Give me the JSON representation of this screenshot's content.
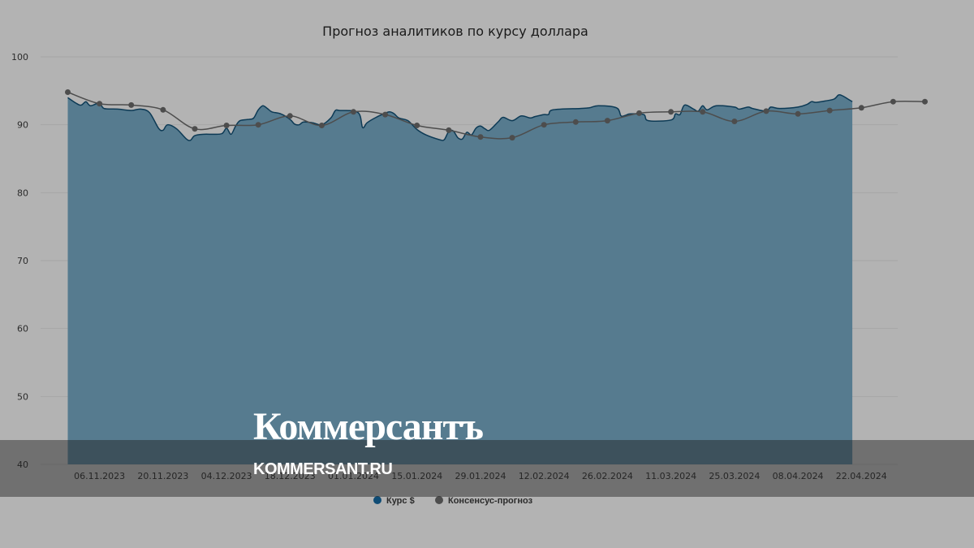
{
  "chart_data": {
    "type": "area",
    "title": "Прогноз аналитиков по курсу доллара",
    "ylim": [
      40,
      100
    ],
    "yticks": [
      100,
      90,
      80,
      70,
      60,
      50,
      40
    ],
    "xlim": [
      "2023-10-24",
      "2024-04-30"
    ],
    "xticks": [
      "06.11.2023",
      "20.11.2023",
      "04.12.2023",
      "18.12.2023",
      "01.01.2024",
      "15.01.2024",
      "29.01.2024",
      "12.02.2024",
      "26.02.2024",
      "11.03.2024",
      "25.03.2024",
      "08.04.2024",
      "22.04.2024"
    ],
    "grid": true,
    "legend_position": "bottom",
    "colors": {
      "area": "#567b8f",
      "area_line": "#0d3a55",
      "consensus": "#4d4d4d",
      "legend_rate": "#0f4c75"
    },
    "series": [
      {
        "name": "Курс $",
        "kind": "area",
        "points": [
          [
            "2023-10-30",
            94.0
          ],
          [
            "2023-11-01",
            93.1
          ],
          [
            "2023-11-02",
            92.9
          ],
          [
            "2023-11-03",
            93.4
          ],
          [
            "2023-11-04",
            92.8
          ],
          [
            "2023-11-06",
            93.2
          ],
          [
            "2023-11-07",
            92.4
          ],
          [
            "2023-11-10",
            92.3
          ],
          [
            "2023-11-13",
            92.1
          ],
          [
            "2023-11-15",
            92.3
          ],
          [
            "2023-11-17",
            91.8
          ],
          [
            "2023-11-19",
            89.5
          ],
          [
            "2023-11-20",
            89.2
          ],
          [
            "2023-11-21",
            90.0
          ],
          [
            "2023-11-23",
            89.4
          ],
          [
            "2023-11-25",
            88.0
          ],
          [
            "2023-11-26",
            87.7
          ],
          [
            "2023-11-27",
            88.4
          ],
          [
            "2023-11-29",
            88.6
          ],
          [
            "2023-12-01",
            88.6
          ],
          [
            "2023-12-03",
            88.7
          ],
          [
            "2023-12-04",
            89.5
          ],
          [
            "2023-12-05",
            88.6
          ],
          [
            "2023-12-06",
            89.8
          ],
          [
            "2023-12-07",
            90.6
          ],
          [
            "2023-12-09",
            90.8
          ],
          [
            "2023-12-10",
            91.0
          ],
          [
            "2023-12-11",
            92.2
          ],
          [
            "2023-12-12",
            92.8
          ],
          [
            "2023-12-13",
            92.4
          ],
          [
            "2023-12-14",
            91.9
          ],
          [
            "2023-12-16",
            91.6
          ],
          [
            "2023-12-18",
            90.8
          ],
          [
            "2023-12-19",
            90.1
          ],
          [
            "2023-12-20",
            90.0
          ],
          [
            "2023-12-21",
            90.4
          ],
          [
            "2023-12-23",
            90.3
          ],
          [
            "2023-12-25",
            90.0
          ],
          [
            "2023-12-27",
            91.0
          ],
          [
            "2023-12-28",
            92.1
          ],
          [
            "2023-12-29",
            92.1
          ],
          [
            "2024-01-02",
            91.8
          ],
          [
            "2024-01-03",
            89.6
          ],
          [
            "2024-01-04",
            90.3
          ],
          [
            "2024-01-06",
            91.1
          ],
          [
            "2024-01-08",
            91.7
          ],
          [
            "2024-01-09",
            91.9
          ],
          [
            "2024-01-10",
            91.6
          ],
          [
            "2024-01-11",
            91.0
          ],
          [
            "2024-01-13",
            90.6
          ],
          [
            "2024-01-15",
            89.3
          ],
          [
            "2024-01-17",
            88.5
          ],
          [
            "2024-01-20",
            87.8
          ],
          [
            "2024-01-21",
            87.8
          ],
          [
            "2024-01-22",
            89.0
          ],
          [
            "2024-01-23",
            89.1
          ],
          [
            "2024-01-24",
            88.1
          ],
          [
            "2024-01-25",
            87.9
          ],
          [
            "2024-01-26",
            88.9
          ],
          [
            "2024-01-27",
            88.5
          ],
          [
            "2024-01-28",
            89.5
          ],
          [
            "2024-01-29",
            89.8
          ],
          [
            "2024-01-30",
            89.4
          ],
          [
            "2024-01-31",
            89.2
          ],
          [
            "2024-02-02",
            90.5
          ],
          [
            "2024-02-03",
            91.1
          ],
          [
            "2024-02-05",
            90.6
          ],
          [
            "2024-02-07",
            91.3
          ],
          [
            "2024-02-09",
            91.0
          ],
          [
            "2024-02-10",
            91.2
          ],
          [
            "2024-02-12",
            91.5
          ],
          [
            "2024-02-13",
            91.5
          ],
          [
            "2024-02-14",
            92.2
          ],
          [
            "2024-02-20",
            92.4
          ],
          [
            "2024-02-22",
            92.5
          ],
          [
            "2024-02-24",
            92.8
          ],
          [
            "2024-02-28",
            92.5
          ],
          [
            "2024-02-29",
            91.3
          ],
          [
            "2024-03-01",
            91.4
          ],
          [
            "2024-03-02",
            91.6
          ],
          [
            "2024-03-05",
            91.5
          ],
          [
            "2024-03-06",
            90.6
          ],
          [
            "2024-03-11",
            90.7
          ],
          [
            "2024-03-12",
            91.6
          ],
          [
            "2024-03-13",
            91.5
          ],
          [
            "2024-03-14",
            92.9
          ],
          [
            "2024-03-16",
            92.3
          ],
          [
            "2024-03-17",
            92.0
          ],
          [
            "2024-03-18",
            92.8
          ],
          [
            "2024-03-19",
            92.2
          ],
          [
            "2024-03-21",
            92.8
          ],
          [
            "2024-03-25",
            92.6
          ],
          [
            "2024-03-26",
            92.3
          ],
          [
            "2024-03-28",
            92.6
          ],
          [
            "2024-03-29",
            92.4
          ],
          [
            "2024-04-01",
            92.0
          ],
          [
            "2024-04-02",
            92.6
          ],
          [
            "2024-04-04",
            92.4
          ],
          [
            "2024-04-08",
            92.6
          ],
          [
            "2024-04-10",
            93.0
          ],
          [
            "2024-04-11",
            93.4
          ],
          [
            "2024-04-12",
            93.3
          ],
          [
            "2024-04-14",
            93.5
          ],
          [
            "2024-04-16",
            93.8
          ],
          [
            "2024-04-17",
            94.4
          ],
          [
            "2024-04-18",
            94.2
          ],
          [
            "2024-04-19",
            93.8
          ],
          [
            "2024-04-20",
            93.4
          ]
        ]
      },
      {
        "name": "Консенсус-прогноз",
        "kind": "line-markers",
        "points": [
          [
            "2023-10-30",
            94.8
          ],
          [
            "2023-11-06",
            93.1
          ],
          [
            "2023-11-13",
            92.9
          ],
          [
            "2023-11-20",
            92.2
          ],
          [
            "2023-11-27",
            89.4
          ],
          [
            "2023-12-04",
            89.9
          ],
          [
            "2023-12-11",
            90.0
          ],
          [
            "2023-12-18",
            91.3
          ],
          [
            "2023-12-25",
            89.9
          ],
          [
            "2024-01-01",
            91.9
          ],
          [
            "2024-01-08",
            91.5
          ],
          [
            "2024-01-15",
            89.9
          ],
          [
            "2024-01-22",
            89.2
          ],
          [
            "2024-01-29",
            88.2
          ],
          [
            "2024-02-05",
            88.1
          ],
          [
            "2024-02-12",
            90.0
          ],
          [
            "2024-02-19",
            90.4
          ],
          [
            "2024-02-26",
            90.6
          ],
          [
            "2024-03-04",
            91.7
          ],
          [
            "2024-03-11",
            91.9
          ],
          [
            "2024-03-18",
            91.9
          ],
          [
            "2024-03-25",
            90.5
          ],
          [
            "2024-04-01",
            92.0
          ],
          [
            "2024-04-08",
            91.6
          ],
          [
            "2024-04-15",
            92.1
          ],
          [
            "2024-04-22",
            92.5
          ],
          [
            "2024-04-29",
            93.4
          ],
          [
            "2024-05-06",
            93.4
          ]
        ]
      }
    ]
  },
  "watermark": {
    "brand": "Коммерсантъ",
    "site": "KOMMERSANT.RU"
  }
}
